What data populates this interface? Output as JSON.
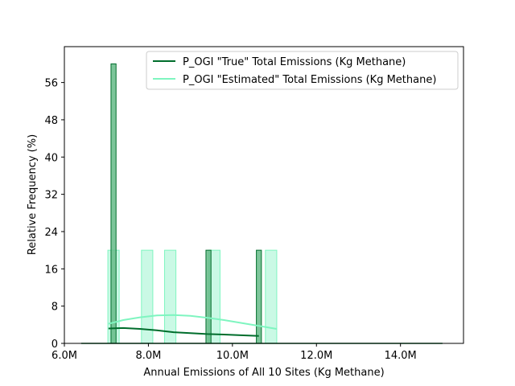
{
  "chart_data": {
    "type": "bar",
    "xlabel": "Annual Emissions of All 10 Sites (Kg Methane)",
    "ylabel": "Relative Frequency (%)",
    "xlim": [
      6.0,
      15.5
    ],
    "ylim": [
      0,
      63.7
    ],
    "x_unit": "M (millions of Kg Methane)",
    "x_ticks": [
      6.0,
      8.0,
      10.0,
      12.0,
      14.0
    ],
    "x_tick_labels": [
      "6.0M",
      "8.0M",
      "10.0M",
      "12.0M",
      "14.0M"
    ],
    "y_ticks": [
      0,
      8,
      16,
      24,
      32,
      40,
      48,
      56
    ],
    "y_tick_labels": [
      "0",
      "8",
      "16",
      "24",
      "32",
      "40",
      "48",
      "56"
    ],
    "grid": false,
    "legend_position": "top-right",
    "series": [
      {
        "name": "P_OGI \"True\" Total Emissions (Kg Methane)",
        "color": "#006d2c",
        "fill_color": "#66bb88",
        "bin_width": 0.12,
        "bins": [
          {
            "x": 7.17,
            "value": 60
          },
          {
            "x": 9.43,
            "value": 20
          },
          {
            "x": 10.63,
            "value": 20
          }
        ],
        "kde": {
          "x": [
            7.05,
            7.4,
            7.8,
            8.2,
            8.6,
            9.0,
            9.4,
            9.8,
            10.2,
            10.63
          ],
          "y": [
            3.2,
            3.3,
            3.1,
            2.8,
            2.4,
            2.2,
            2.0,
            1.9,
            1.75,
            1.6
          ]
        }
      },
      {
        "name": "P_OGI \"Estimated\" Total Emissions (Kg Methane)",
        "color": "#7ff5c0",
        "fill_color": "#b8f7dc",
        "bin_width": 0.27,
        "bins": [
          {
            "x": 7.17,
            "value": 20
          },
          {
            "x": 7.97,
            "value": 20
          },
          {
            "x": 8.52,
            "value": 20
          },
          {
            "x": 9.57,
            "value": 20
          },
          {
            "x": 10.92,
            "value": 20
          }
        ],
        "kde": {
          "x": [
            7.05,
            7.4,
            7.8,
            8.2,
            8.6,
            9.0,
            9.4,
            9.8,
            10.2,
            10.6,
            11.05
          ],
          "y": [
            4.2,
            5.0,
            5.6,
            6.0,
            6.1,
            5.9,
            5.5,
            5.0,
            4.4,
            3.8,
            3.1
          ]
        }
      }
    ],
    "baseline": {
      "x": [
        6.4,
        15.0
      ],
      "value": 0
    }
  }
}
